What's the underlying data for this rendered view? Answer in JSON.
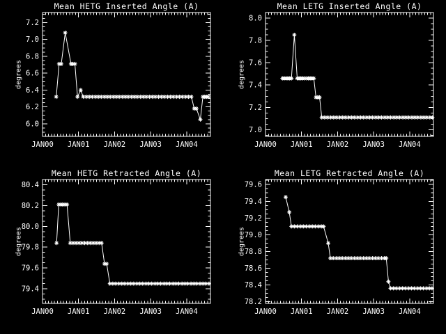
{
  "window": {
    "background": "#000000",
    "foreground": "#ffffff"
  },
  "chart_data": [
    {
      "type": "line",
      "title": "Mean HETG Inserted Angle (A)",
      "ylabel": "degrees",
      "xlabel": "",
      "marker": "asterisk",
      "grid": false,
      "legend": "none",
      "xlim": [
        2000,
        2004.66
      ],
      "ylim": [
        5.85,
        7.32
      ],
      "xticks": [
        {
          "v": 2000,
          "label": "JAN00"
        },
        {
          "v": 2001,
          "label": "JAN01"
        },
        {
          "v": 2002,
          "label": "JAN02"
        },
        {
          "v": 2003,
          "label": "JAN03"
        },
        {
          "v": 2004,
          "label": "JAN04"
        }
      ],
      "yticks": [
        {
          "v": 6.0,
          "label": "6.0"
        },
        {
          "v": 6.2,
          "label": "6.2"
        },
        {
          "v": 6.4,
          "label": "6.4"
        },
        {
          "v": 6.6,
          "label": "6.6"
        },
        {
          "v": 6.8,
          "label": "6.8"
        },
        {
          "v": 7.0,
          "label": "7.0"
        },
        {
          "v": 7.2,
          "label": "7.2"
        }
      ],
      "minor_x_step": 0.08333,
      "minor_y_step": 0.05,
      "points": [
        [
          2000.38,
          6.32
        ],
        [
          2000.46,
          6.71
        ],
        [
          2000.52,
          6.71
        ],
        [
          2000.63,
          7.08
        ],
        [
          2000.79,
          6.71
        ],
        [
          2000.84,
          6.71
        ],
        [
          2000.9,
          6.71
        ],
        [
          2000.97,
          6.32
        ],
        [
          2001.06,
          6.4
        ],
        [
          2001.13,
          6.32
        ],
        [
          2001.22,
          6.32
        ],
        [
          2001.3,
          6.32
        ],
        [
          2001.38,
          6.32
        ],
        [
          2001.47,
          6.32
        ],
        [
          2001.55,
          6.32
        ],
        [
          2001.63,
          6.32
        ],
        [
          2001.72,
          6.32
        ],
        [
          2001.8,
          6.32
        ],
        [
          2001.88,
          6.32
        ],
        [
          2001.97,
          6.32
        ],
        [
          2002.05,
          6.32
        ],
        [
          2002.13,
          6.32
        ],
        [
          2002.22,
          6.32
        ],
        [
          2002.3,
          6.32
        ],
        [
          2002.38,
          6.32
        ],
        [
          2002.47,
          6.32
        ],
        [
          2002.55,
          6.32
        ],
        [
          2002.63,
          6.32
        ],
        [
          2002.72,
          6.32
        ],
        [
          2002.8,
          6.32
        ],
        [
          2002.88,
          6.32
        ],
        [
          2002.97,
          6.32
        ],
        [
          2003.05,
          6.32
        ],
        [
          2003.13,
          6.32
        ],
        [
          2003.22,
          6.32
        ],
        [
          2003.3,
          6.32
        ],
        [
          2003.38,
          6.32
        ],
        [
          2003.47,
          6.32
        ],
        [
          2003.55,
          6.32
        ],
        [
          2003.63,
          6.32
        ],
        [
          2003.72,
          6.32
        ],
        [
          2003.8,
          6.32
        ],
        [
          2003.88,
          6.32
        ],
        [
          2003.97,
          6.32
        ],
        [
          2004.05,
          6.32
        ],
        [
          2004.13,
          6.32
        ],
        [
          2004.21,
          6.18
        ],
        [
          2004.27,
          6.18
        ],
        [
          2004.38,
          6.05
        ],
        [
          2004.45,
          6.32
        ],
        [
          2004.5,
          6.32
        ],
        [
          2004.55,
          6.32
        ],
        [
          2004.6,
          6.32
        ]
      ]
    },
    {
      "type": "line",
      "title": "Mean LETG Inserted Angle (A)",
      "ylabel": "degrees",
      "xlabel": "",
      "marker": "asterisk",
      "grid": false,
      "legend": "none",
      "xlim": [
        2000,
        2004.66
      ],
      "ylim": [
        6.94,
        8.05
      ],
      "xticks": [
        {
          "v": 2000,
          "label": "JAN00"
        },
        {
          "v": 2001,
          "label": "JAN01"
        },
        {
          "v": 2002,
          "label": "JAN02"
        },
        {
          "v": 2003,
          "label": "JAN03"
        },
        {
          "v": 2004,
          "label": "JAN04"
        }
      ],
      "yticks": [
        {
          "v": 7.0,
          "label": "7.0"
        },
        {
          "v": 7.2,
          "label": "7.2"
        },
        {
          "v": 7.4,
          "label": "7.4"
        },
        {
          "v": 7.6,
          "label": "7.6"
        },
        {
          "v": 7.8,
          "label": "7.8"
        },
        {
          "v": 8.0,
          "label": "8.0"
        }
      ],
      "minor_x_step": 0.08333,
      "minor_y_step": 0.05,
      "points": [
        [
          2000.47,
          7.46
        ],
        [
          2000.52,
          7.46
        ],
        [
          2000.57,
          7.46
        ],
        [
          2000.62,
          7.46
        ],
        [
          2000.67,
          7.46
        ],
        [
          2000.72,
          7.46
        ],
        [
          2000.8,
          7.85
        ],
        [
          2000.88,
          7.46
        ],
        [
          2000.93,
          7.46
        ],
        [
          2000.98,
          7.46
        ],
        [
          2001.03,
          7.46
        ],
        [
          2001.08,
          7.46
        ],
        [
          2001.14,
          7.46
        ],
        [
          2001.19,
          7.46
        ],
        [
          2001.24,
          7.46
        ],
        [
          2001.29,
          7.46
        ],
        [
          2001.34,
          7.46
        ],
        [
          2001.4,
          7.29
        ],
        [
          2001.45,
          7.29
        ],
        [
          2001.5,
          7.29
        ],
        [
          2001.56,
          7.11
        ],
        [
          2001.64,
          7.11
        ],
        [
          2001.72,
          7.11
        ],
        [
          2001.81,
          7.11
        ],
        [
          2001.89,
          7.11
        ],
        [
          2001.97,
          7.11
        ],
        [
          2002.06,
          7.11
        ],
        [
          2002.14,
          7.11
        ],
        [
          2002.22,
          7.11
        ],
        [
          2002.31,
          7.11
        ],
        [
          2002.39,
          7.11
        ],
        [
          2002.47,
          7.11
        ],
        [
          2002.56,
          7.11
        ],
        [
          2002.64,
          7.11
        ],
        [
          2002.72,
          7.11
        ],
        [
          2002.81,
          7.11
        ],
        [
          2002.89,
          7.11
        ],
        [
          2002.97,
          7.11
        ],
        [
          2003.06,
          7.11
        ],
        [
          2003.14,
          7.11
        ],
        [
          2003.22,
          7.11
        ],
        [
          2003.31,
          7.11
        ],
        [
          2003.39,
          7.11
        ],
        [
          2003.47,
          7.11
        ],
        [
          2003.56,
          7.11
        ],
        [
          2003.64,
          7.11
        ],
        [
          2003.72,
          7.11
        ],
        [
          2003.81,
          7.11
        ],
        [
          2003.89,
          7.11
        ],
        [
          2003.97,
          7.11
        ],
        [
          2004.06,
          7.11
        ],
        [
          2004.14,
          7.11
        ],
        [
          2004.22,
          7.11
        ],
        [
          2004.31,
          7.11
        ],
        [
          2004.39,
          7.11
        ],
        [
          2004.47,
          7.11
        ],
        [
          2004.56,
          7.11
        ],
        [
          2004.63,
          7.11
        ]
      ]
    },
    {
      "type": "line",
      "title": "Mean HETG Retracted Angle (A)",
      "ylabel": "degrees",
      "xlabel": "",
      "marker": "asterisk",
      "grid": false,
      "legend": "none",
      "xlim": [
        2000,
        2004.66
      ],
      "ylim": [
        79.26,
        80.45
      ],
      "xticks": [
        {
          "v": 2000,
          "label": "JAN00"
        },
        {
          "v": 2001,
          "label": "JAN01"
        },
        {
          "v": 2002,
          "label": "JAN02"
        },
        {
          "v": 2003,
          "label": "JAN03"
        },
        {
          "v": 2004,
          "label": "JAN04"
        }
      ],
      "yticks": [
        {
          "v": 79.4,
          "label": "79.4"
        },
        {
          "v": 79.6,
          "label": "79.6"
        },
        {
          "v": 79.8,
          "label": "79.8"
        },
        {
          "v": 80.0,
          "label": "80.0"
        },
        {
          "v": 80.2,
          "label": "80.2"
        },
        {
          "v": 80.4,
          "label": "80.4"
        }
      ],
      "minor_x_step": 0.08333,
      "minor_y_step": 0.05,
      "points": [
        [
          2000.39,
          79.84
        ],
        [
          2000.45,
          80.21
        ],
        [
          2000.51,
          80.21
        ],
        [
          2000.56,
          80.21
        ],
        [
          2000.62,
          80.21
        ],
        [
          2000.68,
          80.21
        ],
        [
          2000.77,
          79.84
        ],
        [
          2000.85,
          79.84
        ],
        [
          2000.93,
          79.84
        ],
        [
          2001.01,
          79.84
        ],
        [
          2001.09,
          79.84
        ],
        [
          2001.17,
          79.84
        ],
        [
          2001.25,
          79.84
        ],
        [
          2001.33,
          79.84
        ],
        [
          2001.41,
          79.84
        ],
        [
          2001.49,
          79.84
        ],
        [
          2001.57,
          79.84
        ],
        [
          2001.64,
          79.84
        ],
        [
          2001.72,
          79.64
        ],
        [
          2001.78,
          79.64
        ],
        [
          2001.87,
          79.45
        ],
        [
          2001.95,
          79.45
        ],
        [
          2002.03,
          79.45
        ],
        [
          2002.12,
          79.45
        ],
        [
          2002.2,
          79.45
        ],
        [
          2002.28,
          79.45
        ],
        [
          2002.37,
          79.45
        ],
        [
          2002.45,
          79.45
        ],
        [
          2002.53,
          79.45
        ],
        [
          2002.62,
          79.45
        ],
        [
          2002.7,
          79.45
        ],
        [
          2002.78,
          79.45
        ],
        [
          2002.87,
          79.45
        ],
        [
          2002.95,
          79.45
        ],
        [
          2003.03,
          79.45
        ],
        [
          2003.12,
          79.45
        ],
        [
          2003.2,
          79.45
        ],
        [
          2003.28,
          79.45
        ],
        [
          2003.37,
          79.45
        ],
        [
          2003.45,
          79.45
        ],
        [
          2003.53,
          79.45
        ],
        [
          2003.62,
          79.45
        ],
        [
          2003.7,
          79.45
        ],
        [
          2003.78,
          79.45
        ],
        [
          2003.87,
          79.45
        ],
        [
          2003.95,
          79.45
        ],
        [
          2004.03,
          79.45
        ],
        [
          2004.12,
          79.45
        ],
        [
          2004.2,
          79.45
        ],
        [
          2004.28,
          79.45
        ],
        [
          2004.37,
          79.45
        ],
        [
          2004.45,
          79.45
        ],
        [
          2004.53,
          79.45
        ],
        [
          2004.62,
          79.45
        ]
      ]
    },
    {
      "type": "line",
      "title": "Mean LETG Retracted Angle (A)",
      "ylabel": "degrees",
      "xlabel": "",
      "marker": "asterisk",
      "grid": false,
      "legend": "none",
      "xlim": [
        2000,
        2004.66
      ],
      "ylim": [
        78.18,
        79.66
      ],
      "xticks": [
        {
          "v": 2000,
          "label": "JAN00"
        },
        {
          "v": 2001,
          "label": "JAN01"
        },
        {
          "v": 2002,
          "label": "JAN02"
        },
        {
          "v": 2003,
          "label": "JAN03"
        },
        {
          "v": 2004,
          "label": "JAN04"
        }
      ],
      "yticks": [
        {
          "v": 78.2,
          "label": "78.2"
        },
        {
          "v": 78.4,
          "label": "78.4"
        },
        {
          "v": 78.6,
          "label": "78.6"
        },
        {
          "v": 78.8,
          "label": "78.8"
        },
        {
          "v": 79.0,
          "label": "79.0"
        },
        {
          "v": 79.2,
          "label": "79.2"
        },
        {
          "v": 79.4,
          "label": "79.4"
        },
        {
          "v": 79.6,
          "label": "79.6"
        }
      ],
      "minor_x_step": 0.08333,
      "minor_y_step": 0.05,
      "points": [
        [
          2000.56,
          79.45
        ],
        [
          2000.66,
          79.27
        ],
        [
          2000.72,
          79.1
        ],
        [
          2000.8,
          79.1
        ],
        [
          2000.88,
          79.1
        ],
        [
          2000.97,
          79.1
        ],
        [
          2001.05,
          79.1
        ],
        [
          2001.13,
          79.1
        ],
        [
          2001.22,
          79.1
        ],
        [
          2001.3,
          79.1
        ],
        [
          2001.38,
          79.1
        ],
        [
          2001.47,
          79.1
        ],
        [
          2001.55,
          79.1
        ],
        [
          2001.61,
          79.1
        ],
        [
          2001.74,
          78.9
        ],
        [
          2001.8,
          78.72
        ],
        [
          2001.88,
          78.72
        ],
        [
          2001.97,
          78.72
        ],
        [
          2002.05,
          78.72
        ],
        [
          2002.13,
          78.72
        ],
        [
          2002.22,
          78.72
        ],
        [
          2002.3,
          78.72
        ],
        [
          2002.38,
          78.72
        ],
        [
          2002.47,
          78.72
        ],
        [
          2002.55,
          78.72
        ],
        [
          2002.63,
          78.72
        ],
        [
          2002.72,
          78.72
        ],
        [
          2002.8,
          78.72
        ],
        [
          2002.88,
          78.72
        ],
        [
          2002.97,
          78.72
        ],
        [
          2003.05,
          78.72
        ],
        [
          2003.13,
          78.72
        ],
        [
          2003.22,
          78.72
        ],
        [
          2003.3,
          78.72
        ],
        [
          2003.35,
          78.72
        ],
        [
          2003.41,
          78.44
        ],
        [
          2003.47,
          78.36
        ],
        [
          2003.55,
          78.36
        ],
        [
          2003.63,
          78.36
        ],
        [
          2003.72,
          78.36
        ],
        [
          2003.8,
          78.36
        ],
        [
          2003.88,
          78.36
        ],
        [
          2003.97,
          78.36
        ],
        [
          2004.05,
          78.36
        ],
        [
          2004.13,
          78.36
        ],
        [
          2004.22,
          78.36
        ],
        [
          2004.3,
          78.36
        ],
        [
          2004.38,
          78.36
        ],
        [
          2004.47,
          78.36
        ],
        [
          2004.55,
          78.36
        ],
        [
          2004.62,
          78.36
        ]
      ]
    }
  ]
}
